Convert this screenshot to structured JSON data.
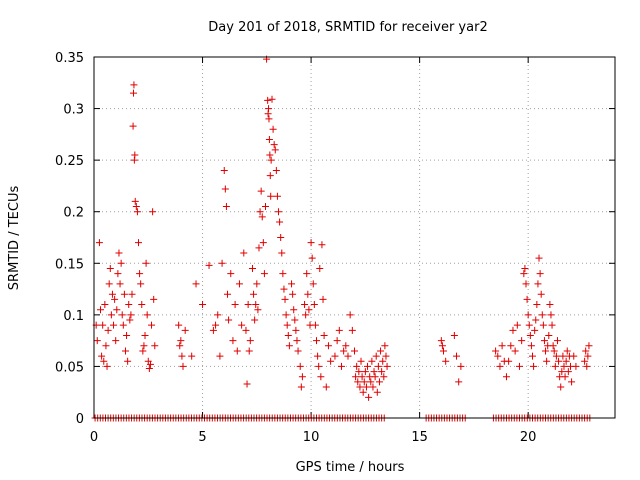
{
  "chart_data": {
    "type": "scatter",
    "title": "Day 201 of 2018, SRMTID for receiver yar2",
    "xlabel": "GPS time / hours",
    "ylabel": "SRMTID / TECUs",
    "xlim": [
      0,
      24
    ],
    "ylim": [
      0,
      0.35
    ],
    "xticks": [
      0,
      5,
      10,
      15,
      20
    ],
    "xtick_labels": [
      "0",
      "5",
      "10",
      "15",
      "20"
    ],
    "yticks": [
      0,
      0.05,
      0.1,
      0.15,
      0.2,
      0.25,
      0.3,
      0.35
    ],
    "ytick_labels": [
      "0",
      "0.05",
      "0.1",
      "0.15",
      "0.2",
      "0.25",
      "0.3",
      "0.35"
    ],
    "grid": true,
    "marker": "+",
    "color": "#e00000",
    "series": [
      {
        "name": "SRMTID",
        "points": [
          [
            0.1,
            0.09
          ],
          [
            0.15,
            0.075
          ],
          [
            0.25,
            0.17
          ],
          [
            0.3,
            0.105
          ],
          [
            0.35,
            0.06
          ],
          [
            0.4,
            0.09
          ],
          [
            0.45,
            0.055
          ],
          [
            0.5,
            0.11
          ],
          [
            0.55,
            0.07
          ],
          [
            0.6,
            0.05
          ],
          [
            0.65,
            0.085
          ],
          [
            0.7,
            0.13
          ],
          [
            0.75,
            0.145
          ],
          [
            0.8,
            0.1
          ],
          [
            0.85,
            0.12
          ],
          [
            0.9,
            0.09
          ],
          [
            0.95,
            0.115
          ],
          [
            1.0,
            0.075
          ],
          [
            1.05,
            0.105
          ],
          [
            1.1,
            0.14
          ],
          [
            1.15,
            0.16
          ],
          [
            1.2,
            0.13
          ],
          [
            1.25,
            0.15
          ],
          [
            1.3,
            0.1
          ],
          [
            1.35,
            0.09
          ],
          [
            1.4,
            0.12
          ],
          [
            1.45,
            0.065
          ],
          [
            1.5,
            0.08
          ],
          [
            1.55,
            0.055
          ],
          [
            1.6,
            0.11
          ],
          [
            1.65,
            0.095
          ],
          [
            1.7,
            0.1
          ],
          [
            1.75,
            0.12
          ],
          [
            1.8,
            0.283
          ],
          [
            1.82,
            0.315
          ],
          [
            1.84,
            0.323
          ],
          [
            1.86,
            0.25
          ],
          [
            1.88,
            0.255
          ],
          [
            1.9,
            0.21
          ],
          [
            1.95,
            0.205
          ],
          [
            2.0,
            0.2
          ],
          [
            2.05,
            0.17
          ],
          [
            2.1,
            0.14
          ],
          [
            2.15,
            0.13
          ],
          [
            2.2,
            0.11
          ],
          [
            2.25,
            0.065
          ],
          [
            2.3,
            0.07
          ],
          [
            2.35,
            0.08
          ],
          [
            2.4,
            0.15
          ],
          [
            2.45,
            0.1
          ],
          [
            2.5,
            0.055
          ],
          [
            2.55,
            0.048
          ],
          [
            2.6,
            0.052
          ],
          [
            2.65,
            0.09
          ],
          [
            2.7,
            0.2
          ],
          [
            2.75,
            0.115
          ],
          [
            2.8,
            0.07
          ],
          [
            3.9,
            0.09
          ],
          [
            3.95,
            0.07
          ],
          [
            4.0,
            0.075
          ],
          [
            4.05,
            0.06
          ],
          [
            4.1,
            0.05
          ],
          [
            4.2,
            0.085
          ],
          [
            4.5,
            0.06
          ],
          [
            4.7,
            0.13
          ],
          [
            5.0,
            0.11
          ],
          [
            5.3,
            0.148
          ],
          [
            5.5,
            0.085
          ],
          [
            5.6,
            0.09
          ],
          [
            5.7,
            0.1
          ],
          [
            5.8,
            0.06
          ],
          [
            5.9,
            0.15
          ],
          [
            6.0,
            0.24
          ],
          [
            6.05,
            0.222
          ],
          [
            6.1,
            0.205
          ],
          [
            6.15,
            0.12
          ],
          [
            6.2,
            0.095
          ],
          [
            6.3,
            0.14
          ],
          [
            6.4,
            0.075
          ],
          [
            6.5,
            0.11
          ],
          [
            6.6,
            0.065
          ],
          [
            6.7,
            0.13
          ],
          [
            6.8,
            0.09
          ],
          [
            6.9,
            0.16
          ],
          [
            7.0,
            0.085
          ],
          [
            7.05,
            0.033
          ],
          [
            7.1,
            0.11
          ],
          [
            7.15,
            0.065
          ],
          [
            7.2,
            0.075
          ],
          [
            7.3,
            0.145
          ],
          [
            7.35,
            0.12
          ],
          [
            7.4,
            0.095
          ],
          [
            7.45,
            0.11
          ],
          [
            7.5,
            0.13
          ],
          [
            7.55,
            0.105
          ],
          [
            7.6,
            0.165
          ],
          [
            7.65,
            0.2
          ],
          [
            7.7,
            0.22
          ],
          [
            7.75,
            0.195
          ],
          [
            7.8,
            0.17
          ],
          [
            7.85,
            0.14
          ],
          [
            7.9,
            0.205
          ],
          [
            7.95,
            0.348
          ],
          [
            8.0,
            0.308
          ],
          [
            8.02,
            0.295
          ],
          [
            8.04,
            0.3
          ],
          [
            8.06,
            0.29
          ],
          [
            8.08,
            0.27
          ],
          [
            8.1,
            0.255
          ],
          [
            8.12,
            0.235
          ],
          [
            8.14,
            0.215
          ],
          [
            8.16,
            0.25
          ],
          [
            8.2,
            0.309
          ],
          [
            8.25,
            0.28
          ],
          [
            8.3,
            0.265
          ],
          [
            8.35,
            0.26
          ],
          [
            8.4,
            0.24
          ],
          [
            8.45,
            0.215
          ],
          [
            8.5,
            0.2
          ],
          [
            8.55,
            0.19
          ],
          [
            8.6,
            0.175
          ],
          [
            8.65,
            0.16
          ],
          [
            8.7,
            0.14
          ],
          [
            8.75,
            0.125
          ],
          [
            8.8,
            0.115
          ],
          [
            8.85,
            0.1
          ],
          [
            8.9,
            0.09
          ],
          [
            8.95,
            0.08
          ],
          [
            9.0,
            0.07
          ],
          [
            9.1,
            0.13
          ],
          [
            9.15,
            0.12
          ],
          [
            9.2,
            0.105
          ],
          [
            9.25,
            0.095
          ],
          [
            9.3,
            0.085
          ],
          [
            9.35,
            0.075
          ],
          [
            9.4,
            0.065
          ],
          [
            9.5,
            0.05
          ],
          [
            9.55,
            0.03
          ],
          [
            9.6,
            0.04
          ],
          [
            9.7,
            0.11
          ],
          [
            9.75,
            0.1
          ],
          [
            9.8,
            0.14
          ],
          [
            9.85,
            0.12
          ],
          [
            9.9,
            0.105
          ],
          [
            9.95,
            0.09
          ],
          [
            10.0,
            0.17
          ],
          [
            10.05,
            0.155
          ],
          [
            10.1,
            0.13
          ],
          [
            10.15,
            0.11
          ],
          [
            10.2,
            0.09
          ],
          [
            10.25,
            0.075
          ],
          [
            10.3,
            0.06
          ],
          [
            10.35,
            0.05
          ],
          [
            10.4,
            0.145
          ],
          [
            10.45,
            0.04
          ],
          [
            10.5,
            0.168
          ],
          [
            10.55,
            0.115
          ],
          [
            10.6,
            0.08
          ],
          [
            10.7,
            0.03
          ],
          [
            10.8,
            0.07
          ],
          [
            10.9,
            0.055
          ],
          [
            11.1,
            0.06
          ],
          [
            11.2,
            0.075
          ],
          [
            11.3,
            0.085
          ],
          [
            11.4,
            0.05
          ],
          [
            11.5,
            0.065
          ],
          [
            11.6,
            0.07
          ],
          [
            11.7,
            0.06
          ],
          [
            11.8,
            0.1
          ],
          [
            11.9,
            0.085
          ],
          [
            12.0,
            0.065
          ],
          [
            12.05,
            0.04
          ],
          [
            12.1,
            0.05
          ],
          [
            12.15,
            0.035
          ],
          [
            12.2,
            0.045
          ],
          [
            12.25,
            0.03
          ],
          [
            12.3,
            0.055
          ],
          [
            12.35,
            0.04
          ],
          [
            12.4,
            0.025
          ],
          [
            12.45,
            0.035
          ],
          [
            12.5,
            0.045
          ],
          [
            12.55,
            0.03
          ],
          [
            12.6,
            0.05
          ],
          [
            12.65,
            0.02
          ],
          [
            12.7,
            0.04
          ],
          [
            12.75,
            0.035
          ],
          [
            12.8,
            0.055
          ],
          [
            12.85,
            0.03
          ],
          [
            12.9,
            0.045
          ],
          [
            12.95,
            0.04
          ],
          [
            13.0,
            0.06
          ],
          [
            13.05,
            0.025
          ],
          [
            13.1,
            0.05
          ],
          [
            13.15,
            0.035
          ],
          [
            13.2,
            0.065
          ],
          [
            13.25,
            0.045
          ],
          [
            13.3,
            0.055
          ],
          [
            13.35,
            0.04
          ],
          [
            13.4,
            0.07
          ],
          [
            13.45,
            0.06
          ],
          [
            13.5,
            0.05
          ],
          [
            16.0,
            0.075
          ],
          [
            16.05,
            0.07
          ],
          [
            16.1,
            0.065
          ],
          [
            16.2,
            0.055
          ],
          [
            16.6,
            0.08
          ],
          [
            16.7,
            0.06
          ],
          [
            16.8,
            0.035
          ],
          [
            16.9,
            0.05
          ],
          [
            18.5,
            0.065
          ],
          [
            18.6,
            0.06
          ],
          [
            18.7,
            0.05
          ],
          [
            18.8,
            0.07
          ],
          [
            18.9,
            0.055
          ],
          [
            19.0,
            0.04
          ],
          [
            19.1,
            0.055
          ],
          [
            19.2,
            0.07
          ],
          [
            19.3,
            0.085
          ],
          [
            19.4,
            0.065
          ],
          [
            19.5,
            0.09
          ],
          [
            19.6,
            0.05
          ],
          [
            19.7,
            0.075
          ],
          [
            19.8,
            0.14
          ],
          [
            19.85,
            0.145
          ],
          [
            19.9,
            0.13
          ],
          [
            19.95,
            0.115
          ],
          [
            20.0,
            0.1
          ],
          [
            20.05,
            0.09
          ],
          [
            20.1,
            0.08
          ],
          [
            20.15,
            0.07
          ],
          [
            20.2,
            0.06
          ],
          [
            20.25,
            0.05
          ],
          [
            20.3,
            0.085
          ],
          [
            20.35,
            0.095
          ],
          [
            20.4,
            0.11
          ],
          [
            20.45,
            0.13
          ],
          [
            20.5,
            0.155
          ],
          [
            20.55,
            0.14
          ],
          [
            20.6,
            0.12
          ],
          [
            20.65,
            0.1
          ],
          [
            20.7,
            0.09
          ],
          [
            20.75,
            0.075
          ],
          [
            20.8,
            0.065
          ],
          [
            20.85,
            0.055
          ],
          [
            20.9,
            0.07
          ],
          [
            20.95,
            0.08
          ],
          [
            21.0,
            0.11
          ],
          [
            21.05,
            0.1
          ],
          [
            21.1,
            0.09
          ],
          [
            21.15,
            0.07
          ],
          [
            21.2,
            0.065
          ],
          [
            21.25,
            0.05
          ],
          [
            21.3,
            0.06
          ],
          [
            21.35,
            0.075
          ],
          [
            21.4,
            0.055
          ],
          [
            21.45,
            0.04
          ],
          [
            21.5,
            0.03
          ],
          [
            21.55,
            0.045
          ],
          [
            21.6,
            0.06
          ],
          [
            21.65,
            0.05
          ],
          [
            21.7,
            0.04
          ],
          [
            21.75,
            0.055
          ],
          [
            21.8,
            0.065
          ],
          [
            21.85,
            0.045
          ],
          [
            21.9,
            0.06
          ],
          [
            21.95,
            0.05
          ],
          [
            22.0,
            0.035
          ],
          [
            22.1,
            0.06
          ],
          [
            22.2,
            0.05
          ],
          [
            22.6,
            0.055
          ],
          [
            22.65,
            0.065
          ],
          [
            22.7,
            0.05
          ],
          [
            22.75,
            0.06
          ],
          [
            22.8,
            0.07
          ]
        ],
        "zero_x_ranges": [
          [
            0.05,
            13.45
          ],
          [
            15.3,
            17.1
          ],
          [
            18.4,
            22.85
          ]
        ]
      }
    ]
  }
}
